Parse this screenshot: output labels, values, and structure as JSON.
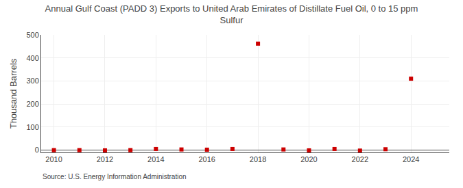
{
  "chart_data": {
    "type": "scatter",
    "title": "Annual Gulf Coast (PADD 3) Exports to United Arab Emirates of Distillate Fuel Oil, 0 to 15 ppm\nSulfur",
    "ylabel": "Thousand Barrels",
    "source": "Source: U.S. Energy Information Administration",
    "x": [
      2010,
      2011,
      2012,
      2013,
      2014,
      2015,
      2016,
      2017,
      2018,
      2019,
      2020,
      2021,
      2022,
      2023,
      2024
    ],
    "values": [
      0,
      0,
      -1,
      0,
      5,
      3,
      2,
      5,
      462,
      3,
      -1,
      5,
      -2,
      4,
      310
    ],
    "color": "#cc0000",
    "marker": "square",
    "xlim": [
      2009.5,
      2025.5
    ],
    "xticks": [
      2010,
      2012,
      2014,
      2016,
      2018,
      2020,
      2022,
      2024
    ],
    "ylim": [
      -10,
      500
    ],
    "yticks": [
      0,
      100,
      200,
      300,
      400,
      500
    ],
    "grid": true
  }
}
